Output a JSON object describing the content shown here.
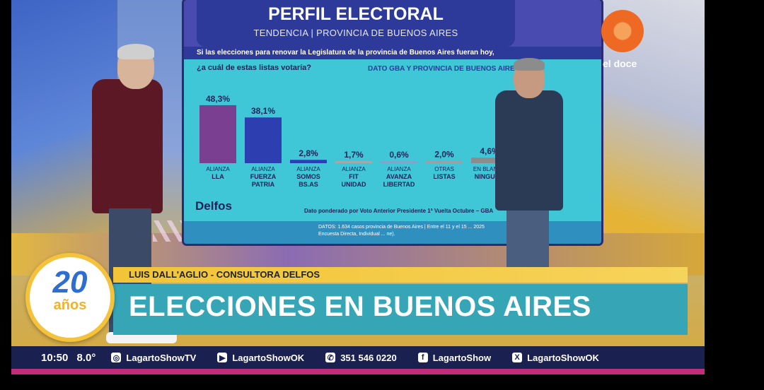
{
  "screen": {
    "title": "PERFIL ELECTORAL",
    "subtitle": "TENDENCIA | PROVINCIA DE BUENOS AIRES",
    "question_line1": "Si las elecciones para renovar la Legislatura de la provincia de Buenos Aires fueran hoy,",
    "question_line2": "¿a cuál de estas listas votaría?",
    "scope": "DATO GBA Y PROVINCIA DE BUENOS AIRES",
    "brand": "Delfos",
    "footnote": "Dato ponderado por Voto Anterior Presidente 1ª Vuelta Octubre – GBA",
    "datos_line1": "DATOS: 1.634 casos provincia de Buenos Aires | Entre el 11 y el 15 ... 2025",
    "datos_line2": "Encuesta Directa, Individual ... ne)."
  },
  "chart_data": {
    "type": "bar",
    "categories": [
      [
        "ALIANZA",
        "LLA"
      ],
      [
        "ALIANZA",
        "FUERZA",
        "PATRIA"
      ],
      [
        "ALIANZA",
        "SOMOS",
        "BS.AS"
      ],
      [
        "ALIANZA",
        "FIT",
        "UNIDAD"
      ],
      [
        "ALIANZA",
        "AVANZA",
        "LIBERTAD"
      ],
      [
        "OTRAS",
        "LISTAS"
      ],
      [
        "EN BLANCO",
        "NINGUNO"
      ]
    ],
    "values": [
      48.3,
      38.1,
      2.8,
      1.7,
      0.6,
      2.0,
      4.6
    ],
    "labels": [
      "48,3%",
      "38,1%",
      "2,8%",
      "1,7%",
      "0,6%",
      "2,0%",
      "4,6%"
    ],
    "colors": [
      "#7b3f91",
      "#2d3fb0",
      "#2b3fb8",
      "#a7a7a7",
      "#7fa6c9",
      "#9aa0a4",
      "#8c8c8c"
    ],
    "ylim": [
      0,
      50
    ]
  },
  "channel": {
    "name": "el doce"
  },
  "lower_third": {
    "badge_number": "20",
    "badge_word": "años",
    "name_line": "LUIS DALL'AGLIO - CONSULTORA DELFOS",
    "headline": "ELECCIONES EN BUENOS AIRES"
  },
  "ticker": {
    "time": "10:50",
    "temp": "8.0°",
    "items": [
      {
        "icon": "instagram-icon",
        "glyph": "◎",
        "text": "LagartoShowTV"
      },
      {
        "icon": "youtube-icon",
        "glyph": "▶",
        "text": "LagartoShowOK"
      },
      {
        "icon": "whatsapp-icon",
        "glyph": "✆",
        "text": "351 546 0220"
      },
      {
        "icon": "facebook-icon",
        "glyph": "f",
        "text": "LagartoShow"
      },
      {
        "icon": "x-icon",
        "glyph": "X",
        "text": "LagartoShowOK"
      }
    ]
  }
}
